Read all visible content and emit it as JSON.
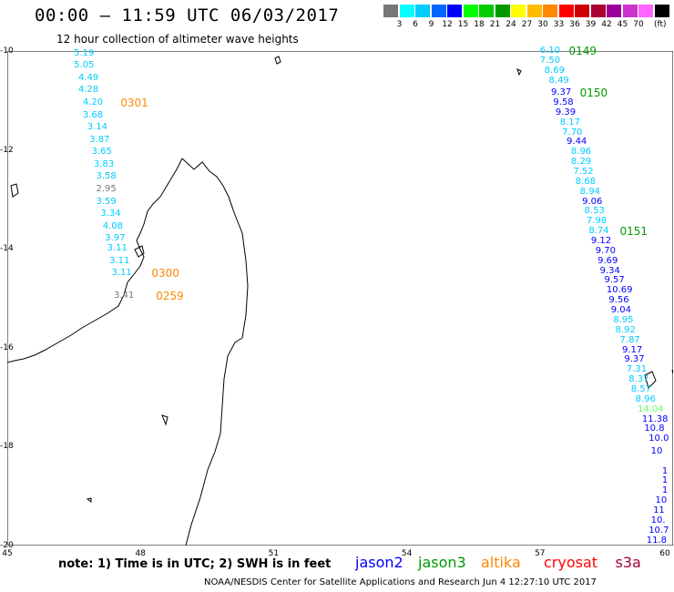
{
  "title": "00:00 – 11:59 UTC 06/03/2017",
  "subtitle": "12 hour collection of altimeter wave heights",
  "scale": {
    "unit": "(ft)",
    "colors": [
      "#777777",
      "#00ffff",
      "#00ccff",
      "#0066ff",
      "#0000ff",
      "#00ff00",
      "#00cc00",
      "#009900",
      "#ffff00",
      "#ffbb00",
      "#ff8800",
      "#ff0000",
      "#cc0000",
      "#aa0033",
      "#990099",
      "#cc33cc",
      "#ff66ff",
      "#000000"
    ],
    "labels": [
      "3",
      "6",
      "9",
      "12",
      "15",
      "18",
      "21",
      "24",
      "27",
      "30",
      "33",
      "36",
      "39",
      "42",
      "45",
      "70"
    ]
  },
  "map": {
    "lon_ticks": [
      "45",
      "48",
      "51",
      "54",
      "57",
      "60"
    ],
    "lat_ticks": [
      "-10",
      "-12",
      "-14",
      "-16",
      "-18",
      "-20"
    ]
  },
  "tracks": [
    {
      "satellite": "jason2-west",
      "points": [
        {
          "text": "5.19",
          "lat": -10.05,
          "lon": 46.5,
          "color": "#00ccff"
        },
        {
          "text": "5.05",
          "lat": -10.3,
          "lon": 46.5,
          "color": "#00ccff"
        },
        {
          "text": "4.49",
          "lat": -10.55,
          "lon": 46.6,
          "color": "#00ccff"
        },
        {
          "text": "4.28",
          "lat": -10.8,
          "lon": 46.6,
          "color": "#00ccff"
        },
        {
          "text": "4.20",
          "lat": -11.05,
          "lon": 46.7,
          "color": "#00ccff"
        },
        {
          "text": "3.68",
          "lat": -11.3,
          "lon": 46.7,
          "color": "#00ccff"
        },
        {
          "text": "3.14",
          "lat": -11.55,
          "lon": 46.8,
          "color": "#00ccff"
        },
        {
          "text": "3.87",
          "lat": -11.8,
          "lon": 46.85,
          "color": "#00ccff"
        },
        {
          "text": "3.65",
          "lat": -12.05,
          "lon": 46.9,
          "color": "#00ccff"
        },
        {
          "text": "3.83",
          "lat": -12.3,
          "lon": 46.95,
          "color": "#00ccff"
        },
        {
          "text": "3.58",
          "lat": -12.55,
          "lon": 47.0,
          "color": "#00ccff"
        },
        {
          "text": "2.95",
          "lat": -12.8,
          "lon": 47.0,
          "color": "#777777"
        },
        {
          "text": "3.59",
          "lat": -13.05,
          "lon": 47.0,
          "color": "#00ccff"
        },
        {
          "text": "3.34",
          "lat": -13.3,
          "lon": 47.1,
          "color": "#00ccff"
        },
        {
          "text": "4.08",
          "lat": -13.55,
          "lon": 47.15,
          "color": "#00ccff"
        },
        {
          "text": "3.97",
          "lat": -13.8,
          "lon": 47.2,
          "color": "#00ccff"
        },
        {
          "text": "3.11",
          "lat": -14.0,
          "lon": 47.25,
          "color": "#00ccff"
        },
        {
          "text": "3.11",
          "lat": -14.25,
          "lon": 47.3,
          "color": "#00ccff"
        },
        {
          "text": "3.11",
          "lat": -14.5,
          "lon": 47.35,
          "color": "#00ccff"
        },
        {
          "text": "3.41",
          "lat": -14.95,
          "lon": 47.4,
          "color": "#777777"
        }
      ]
    },
    {
      "satellite": "jason2-east",
      "points": [
        {
          "text": "6.10",
          "lat": -10.0,
          "lon": 57.0,
          "color": "#00ccff"
        },
        {
          "text": "7.50",
          "lat": -10.2,
          "lon": 57.0,
          "color": "#00ccff"
        },
        {
          "text": "8.69",
          "lat": -10.4,
          "lon": 57.1,
          "color": "#00ccff"
        },
        {
          "text": "8.49",
          "lat": -10.6,
          "lon": 57.2,
          "color": "#00ccff"
        },
        {
          "text": "9.37",
          "lat": -10.85,
          "lon": 57.25,
          "color": "#0000ff"
        },
        {
          "text": "9.58",
          "lat": -11.05,
          "lon": 57.3,
          "color": "#0000ff"
        },
        {
          "text": "9.39",
          "lat": -11.25,
          "lon": 57.35,
          "color": "#0000ff"
        },
        {
          "text": "8.17",
          "lat": -11.45,
          "lon": 57.45,
          "color": "#00ccff"
        },
        {
          "text": "7.70",
          "lat": -11.65,
          "lon": 57.5,
          "color": "#00ccff"
        },
        {
          "text": "9.44",
          "lat": -11.85,
          "lon": 57.6,
          "color": "#0000ff"
        },
        {
          "text": "8.96",
          "lat": -12.05,
          "lon": 57.7,
          "color": "#00ccff"
        },
        {
          "text": "8.29",
          "lat": -12.25,
          "lon": 57.7,
          "color": "#00ccff"
        },
        {
          "text": "7.52",
          "lat": -12.45,
          "lon": 57.75,
          "color": "#00ccff"
        },
        {
          "text": "8.68",
          "lat": -12.65,
          "lon": 57.8,
          "color": "#00ccff"
        },
        {
          "text": "8.94",
          "lat": -12.85,
          "lon": 57.9,
          "color": "#00ccff"
        },
        {
          "text": "9.06",
          "lat": -13.05,
          "lon": 57.95,
          "color": "#0000ff"
        },
        {
          "text": "8.53",
          "lat": -13.25,
          "lon": 58.0,
          "color": "#00ccff"
        },
        {
          "text": "7.98",
          "lat": -13.45,
          "lon": 58.05,
          "color": "#00ccff"
        },
        {
          "text": "8.74",
          "lat": -13.65,
          "lon": 58.1,
          "color": "#00ccff"
        },
        {
          "text": "9.12",
          "lat": -13.85,
          "lon": 58.15,
          "color": "#0000ff"
        },
        {
          "text": "9.70",
          "lat": -14.05,
          "lon": 58.25,
          "color": "#0000ff"
        },
        {
          "text": "9.69",
          "lat": -14.25,
          "lon": 58.3,
          "color": "#0000ff"
        },
        {
          "text": "9.34",
          "lat": -14.45,
          "lon": 58.35,
          "color": "#0000ff"
        },
        {
          "text": "9.57",
          "lat": -14.65,
          "lon": 58.45,
          "color": "#0000ff"
        },
        {
          "text": "10.69",
          "lat": -14.85,
          "lon": 58.5,
          "color": "#0000ff"
        },
        {
          "text": "9.56",
          "lat": -15.05,
          "lon": 58.55,
          "color": "#0000ff"
        },
        {
          "text": "9.04",
          "lat": -15.25,
          "lon": 58.6,
          "color": "#0000ff"
        },
        {
          "text": "8.95",
          "lat": -15.45,
          "lon": 58.65,
          "color": "#00ccff"
        },
        {
          "text": "8.92",
          "lat": -15.65,
          "lon": 58.7,
          "color": "#00ccff"
        },
        {
          "text": "7.87",
          "lat": -15.85,
          "lon": 58.8,
          "color": "#00ccff"
        },
        {
          "text": "9.17",
          "lat": -16.05,
          "lon": 58.85,
          "color": "#0000ff"
        },
        {
          "text": "9.37",
          "lat": -16.25,
          "lon": 58.9,
          "color": "#0000ff"
        },
        {
          "text": "7.31",
          "lat": -16.45,
          "lon": 58.95,
          "color": "#00ccff"
        },
        {
          "text": "8.37",
          "lat": -16.65,
          "lon": 59.0,
          "color": "#00ccff"
        },
        {
          "text": "8.57",
          "lat": -16.85,
          "lon": 59.05,
          "color": "#00ccff"
        },
        {
          "text": "8.96",
          "lat": -17.05,
          "lon": 59.15,
          "color": "#00ccff"
        },
        {
          "text": "14.04",
          "lat": -17.25,
          "lon": 59.2,
          "color": "#66ff66"
        },
        {
          "text": "11.38",
          "lat": -17.45,
          "lon": 59.3,
          "color": "#0000ff"
        },
        {
          "text": "10.8",
          "lat": -17.65,
          "lon": 59.35,
          "color": "#0000ff"
        },
        {
          "text": "10.0",
          "lat": -17.85,
          "lon": 59.45,
          "color": "#0000ff"
        },
        {
          "text": "10",
          "lat": -18.1,
          "lon": 59.5,
          "color": "#0000ff"
        },
        {
          "text": "1",
          "lat": -18.5,
          "lon": 59.75,
          "color": "#0000ff"
        },
        {
          "text": "1",
          "lat": -18.7,
          "lon": 59.75,
          "color": "#0000ff"
        },
        {
          "text": "1",
          "lat": -18.9,
          "lon": 59.75,
          "color": "#0000ff"
        },
        {
          "text": "10",
          "lat": -19.1,
          "lon": 59.6,
          "color": "#0000ff"
        },
        {
          "text": "11",
          "lat": -19.3,
          "lon": 59.55,
          "color": "#0000ff"
        },
        {
          "text": "10.",
          "lat": -19.5,
          "lon": 59.5,
          "color": "#0000ff"
        },
        {
          "text": "10.7",
          "lat": -19.7,
          "lon": 59.45,
          "color": "#0000ff"
        },
        {
          "text": "11.8",
          "lat": -19.9,
          "lon": 59.4,
          "color": "#0000ff"
        }
      ]
    }
  ],
  "pass_times": [
    {
      "text": "0301",
      "lat": -11.05,
      "lon": 47.55,
      "color": "#ff8800"
    },
    {
      "text": "0300",
      "lat": -14.5,
      "lon": 48.25,
      "color": "#ff8800"
    },
    {
      "text": "0259",
      "lat": -14.95,
      "lon": 48.35,
      "color": "#ff8800"
    },
    {
      "text": "0149",
      "lat": -10.0,
      "lon": 57.65,
      "color": "#009900"
    },
    {
      "text": "0150",
      "lat": -10.85,
      "lon": 57.9,
      "color": "#009900"
    },
    {
      "text": "0151",
      "lat": -13.65,
      "lon": 58.8,
      "color": "#009900"
    }
  ],
  "note": "note:  1) Time is in UTC;  2) SWH is in feet",
  "legend": [
    {
      "name": "jason2",
      "color": "#0000ff"
    },
    {
      "name": "jason3",
      "color": "#009900"
    },
    {
      "name": "altika",
      "color": "#ff8800"
    },
    {
      "name": "cryosat",
      "color": "#ff0000"
    },
    {
      "name": "s3a",
      "color": "#aa0033"
    }
  ],
  "credit": "NOAA/NESDIS Center for Satellite Applications and Research    Jun  4 12:27:10 UTC 2017"
}
